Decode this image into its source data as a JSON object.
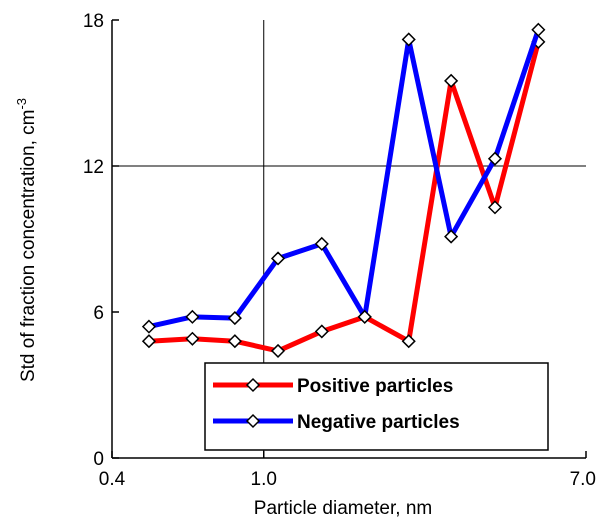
{
  "chart_data": {
    "type": "line",
    "title": "",
    "xlabel": "Particle diameter, nm",
    "ylabel": "Std of fraction concentration, cm",
    "ylabel_superscript": "-3",
    "x_scale": "log",
    "xlim": [
      0.4,
      7.0
    ],
    "ylim": [
      0,
      18
    ],
    "x_ticks": [
      {
        "value": 0.4,
        "label": "0.4"
      },
      {
        "value": 1.0,
        "label": "1.0"
      },
      {
        "value": 7.0,
        "label": "7.0"
      }
    ],
    "y_ticks": [
      {
        "value": 0,
        "label": "0"
      },
      {
        "value": 6,
        "label": "6"
      },
      {
        "value": 12,
        "label": "12"
      },
      {
        "value": 18,
        "label": "18"
      }
    ],
    "grid": {
      "x_at": [
        1.0
      ],
      "y_at": [
        12
      ]
    },
    "legend_position": "bottom-right",
    "series": [
      {
        "name": "Positive particles",
        "color": "#ff0000",
        "marker": "diamond-open",
        "x": [
          0.5,
          0.65,
          0.84,
          1.09,
          1.42,
          1.84,
          2.4,
          3.1,
          4.04,
          5.25
        ],
        "y": [
          4.8,
          4.9,
          4.8,
          4.4,
          5.2,
          5.8,
          4.8,
          15.5,
          10.3,
          17.1
        ]
      },
      {
        "name": "Negative particles",
        "color": "#0000ff",
        "marker": "diamond-open",
        "x": [
          0.5,
          0.65,
          0.84,
          1.09,
          1.42,
          1.84,
          2.4,
          3.1,
          4.04,
          5.25
        ],
        "y": [
          5.4,
          5.8,
          5.75,
          8.2,
          8.8,
          5.8,
          17.2,
          9.1,
          12.3,
          17.6
        ]
      }
    ]
  }
}
